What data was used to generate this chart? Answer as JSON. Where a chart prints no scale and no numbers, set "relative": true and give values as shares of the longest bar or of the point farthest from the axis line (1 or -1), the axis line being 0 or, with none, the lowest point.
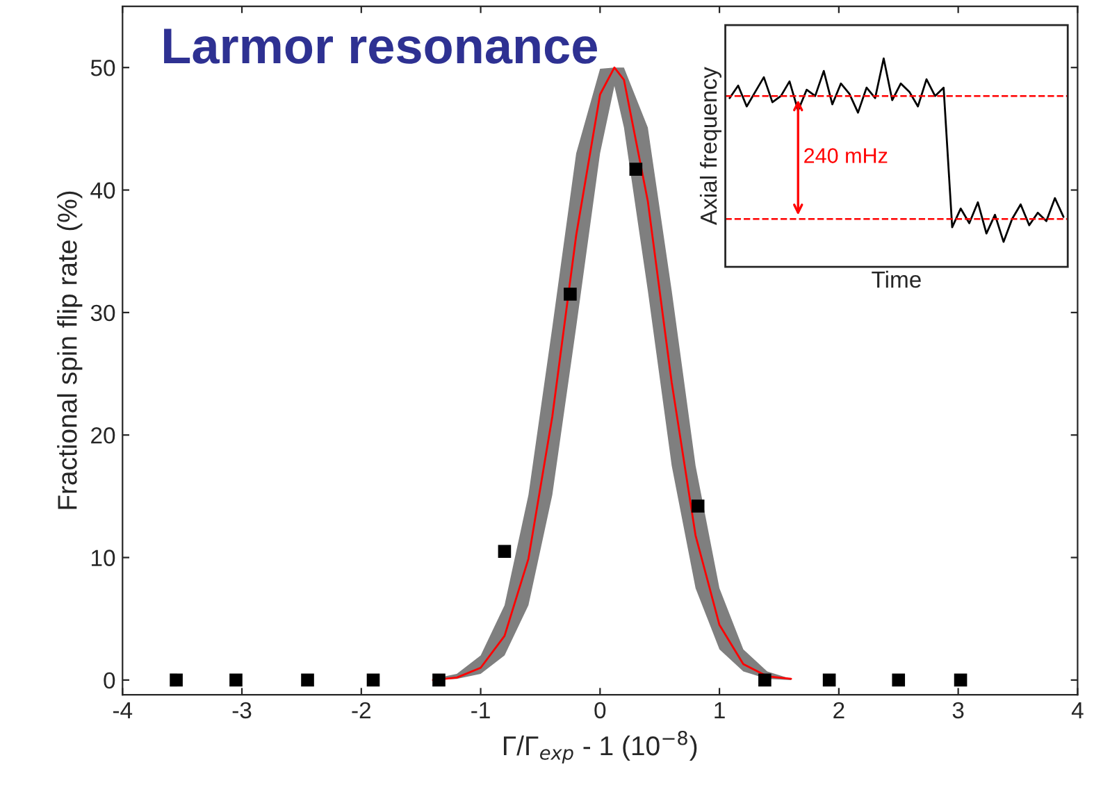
{
  "chart_data": [
    {
      "type": "scatter",
      "title": "Larmor resonance",
      "xlabel": "Γ/Γ$_{exp}$ - 1 (10$^{−8}$)",
      "ylabel": "Fractional spin flip rate (%)",
      "xlim": [
        -4,
        4
      ],
      "xticks": [
        -4,
        -3,
        -2,
        -1,
        0,
        1,
        2,
        3,
        4
      ],
      "ylim": [
        -1.2,
        55
      ],
      "yticks": [
        0,
        10,
        20,
        30,
        40,
        50
      ],
      "series": [
        {
          "type": "line",
          "color": "#ff0000",
          "x": [
            -1.4,
            -1.2,
            -1.0,
            -0.8,
            -0.6,
            -0.4,
            -0.2,
            0,
            0.12,
            0.2,
            0.4,
            0.6,
            0.8,
            1.0,
            1.2,
            1.4,
            1.6
          ],
          "values": [
            0.0,
            0.2,
            1.0,
            3.6,
            9.9,
            21.5,
            36.3,
            47.8,
            50,
            49.0,
            39.1,
            24.3,
            11.8,
            4.5,
            1.3,
            0.3,
            0.1
          ],
          "lower": [
            0.0,
            0.1,
            0.5,
            2.0,
            6.1,
            15.1,
            28.8,
            43.0,
            48.5,
            45.1,
            31.8,
            17.5,
            7.5,
            2.5,
            0.7,
            0.1,
            0.0
          ],
          "upper": [
            0.1,
            0.5,
            2.0,
            6.1,
            15.1,
            28.8,
            43.0,
            49.9,
            50,
            50,
            45.1,
            31.8,
            17.5,
            7.5,
            2.5,
            0.7,
            0.1
          ],
          "marker": "none",
          "line_style": "solid"
        },
        {
          "type": "scatter",
          "color": "#000000",
          "marker": "square",
          "x": [
            -3.55,
            -3.05,
            -2.45,
            -1.9,
            -1.35,
            -0.8,
            -0.25,
            0.3,
            0.82,
            1.38,
            1.92,
            2.5,
            3.02
          ],
          "values": [
            0,
            0,
            0,
            0,
            0,
            10.5,
            31.5,
            41.7,
            14.2,
            0,
            0,
            0,
            0
          ]
        }
      ]
    },
    {
      "type": "line",
      "relative": true,
      "xlabel": "Time",
      "ylabel": "Axial frequency",
      "categories": [
        null,
        null,
        null,
        null,
        null,
        null,
        null,
        null,
        null,
        null,
        null,
        null,
        null,
        null,
        null,
        null,
        null,
        null,
        null,
        null,
        null,
        null,
        null,
        null,
        null,
        null,
        null,
        null,
        null,
        null,
        null,
        null,
        null,
        null,
        null,
        null,
        null,
        null,
        null,
        null
      ],
      "series": [
        {
          "color": "#000000",
          "line_style": "solid",
          "values": [
            0.81,
            0.87,
            0.77,
            0.84,
            0.91,
            0.79,
            0.82,
            0.89,
            0.75,
            0.85,
            0.82,
            0.94,
            0.78,
            0.88,
            0.83,
            0.74,
            0.86,
            0.81,
            1.0,
            0.8,
            0.88,
            0.84,
            0.77,
            0.9,
            0.82,
            0.86,
            0.19,
            0.28,
            0.21,
            0.31,
            0.16,
            0.25,
            0.12,
            0.23,
            0.3,
            0.2,
            0.26,
            0.22,
            0.33,
            0.24
          ]
        }
      ],
      "ref_lines": [
        {
          "axis": "y",
          "value": 0.82,
          "color": "#ff0000",
          "line_style": "dashed"
        },
        {
          "axis": "y",
          "value": 0.23,
          "color": "#ff0000",
          "line_style": "dashed"
        }
      ],
      "annotations": [
        "240 mHz"
      ]
    }
  ]
}
